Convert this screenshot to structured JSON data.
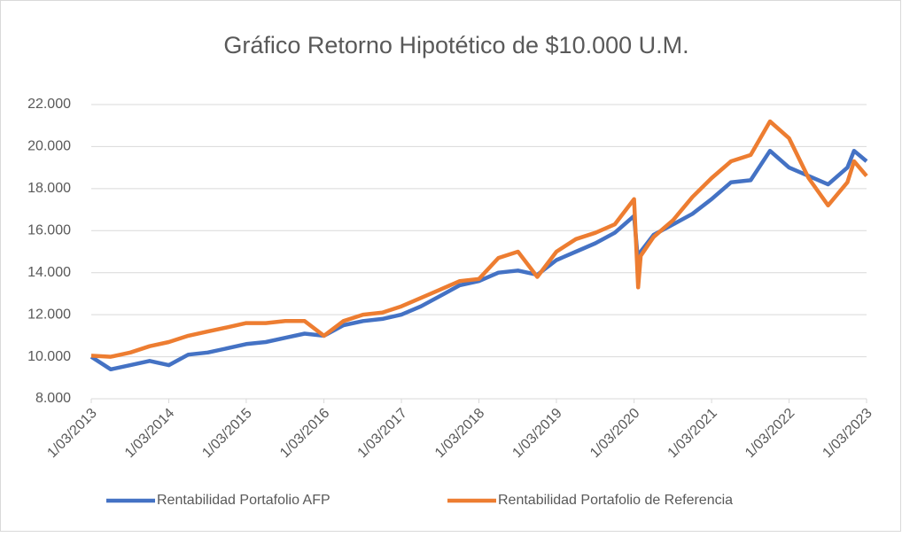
{
  "chart_data": {
    "type": "line",
    "title": "Gráfico Retorno Hipotético de $10.000 U.M.",
    "x": [
      "1/03/2013",
      "1/06/2013",
      "1/09/2013",
      "1/12/2013",
      "1/03/2014",
      "1/06/2014",
      "1/09/2014",
      "1/12/2014",
      "1/03/2015",
      "1/06/2015",
      "1/09/2015",
      "1/12/2015",
      "1/03/2016",
      "1/06/2016",
      "1/09/2016",
      "1/12/2016",
      "1/03/2017",
      "1/06/2017",
      "1/09/2017",
      "1/12/2017",
      "1/03/2018",
      "1/06/2018",
      "1/09/2018",
      "1/12/2018",
      "1/03/2019",
      "1/06/2019",
      "1/09/2019",
      "1/12/2019",
      "1/03/2020",
      "20/03/2020",
      "1/04/2020",
      "1/06/2020",
      "1/09/2020",
      "1/12/2020",
      "1/03/2021",
      "1/06/2021",
      "1/09/2021",
      "1/12/2021",
      "1/03/2022",
      "1/06/2022",
      "1/09/2022",
      "1/12/2022",
      "1/01/2023",
      "1/03/2023"
    ],
    "series": [
      {
        "name": "Rentabilidad Portafolio AFP",
        "color": "#4472c4",
        "values": [
          10000,
          9400,
          9600,
          9800,
          9600,
          10100,
          10200,
          10400,
          10600,
          10700,
          10900,
          11100,
          11000,
          11500,
          11700,
          11800,
          12000,
          12400,
          12900,
          13400,
          13600,
          14000,
          14100,
          13900,
          14600,
          15000,
          15400,
          15900,
          16700,
          14500,
          15000,
          15800,
          16300,
          16800,
          17500,
          18300,
          18400,
          19800,
          19000,
          18600,
          18200,
          19000,
          19800,
          19300
        ]
      },
      {
        "name": "Rentabilidad Portafolio de Referencia",
        "color": "#ed7d31",
        "values": [
          10050,
          10000,
          10200,
          10500,
          10700,
          11000,
          11200,
          11400,
          11600,
          11600,
          11700,
          11700,
          11000,
          11700,
          12000,
          12100,
          12400,
          12800,
          13200,
          13600,
          13700,
          14700,
          15000,
          13800,
          15000,
          15600,
          15900,
          16300,
          17500,
          13300,
          14800,
          15700,
          16500,
          17600,
          18500,
          19300,
          19600,
          21200,
          20400,
          18500,
          17200,
          18300,
          19300,
          18600
        ]
      }
    ],
    "xlim": [
      "1/03/2013",
      "1/03/2023"
    ],
    "xticks": [
      "1/03/2013",
      "1/03/2014",
      "1/03/2015",
      "1/03/2016",
      "1/03/2017",
      "1/03/2018",
      "1/03/2019",
      "1/03/2020",
      "1/03/2021",
      "1/03/2022",
      "1/03/2023"
    ],
    "ylim": [
      8000,
      22000
    ],
    "yticks": [
      {
        "value": 8000,
        "label": "8.000"
      },
      {
        "value": 10000,
        "label": "10.000"
      },
      {
        "value": 12000,
        "label": "12.000"
      },
      {
        "value": 14000,
        "label": "14.000"
      },
      {
        "value": 16000,
        "label": "16.000"
      },
      {
        "value": 18000,
        "label": "18.000"
      },
      {
        "value": 20000,
        "label": "20.000"
      },
      {
        "value": 22000,
        "label": "22.000"
      }
    ],
    "grid": true,
    "legend": "bottom"
  }
}
